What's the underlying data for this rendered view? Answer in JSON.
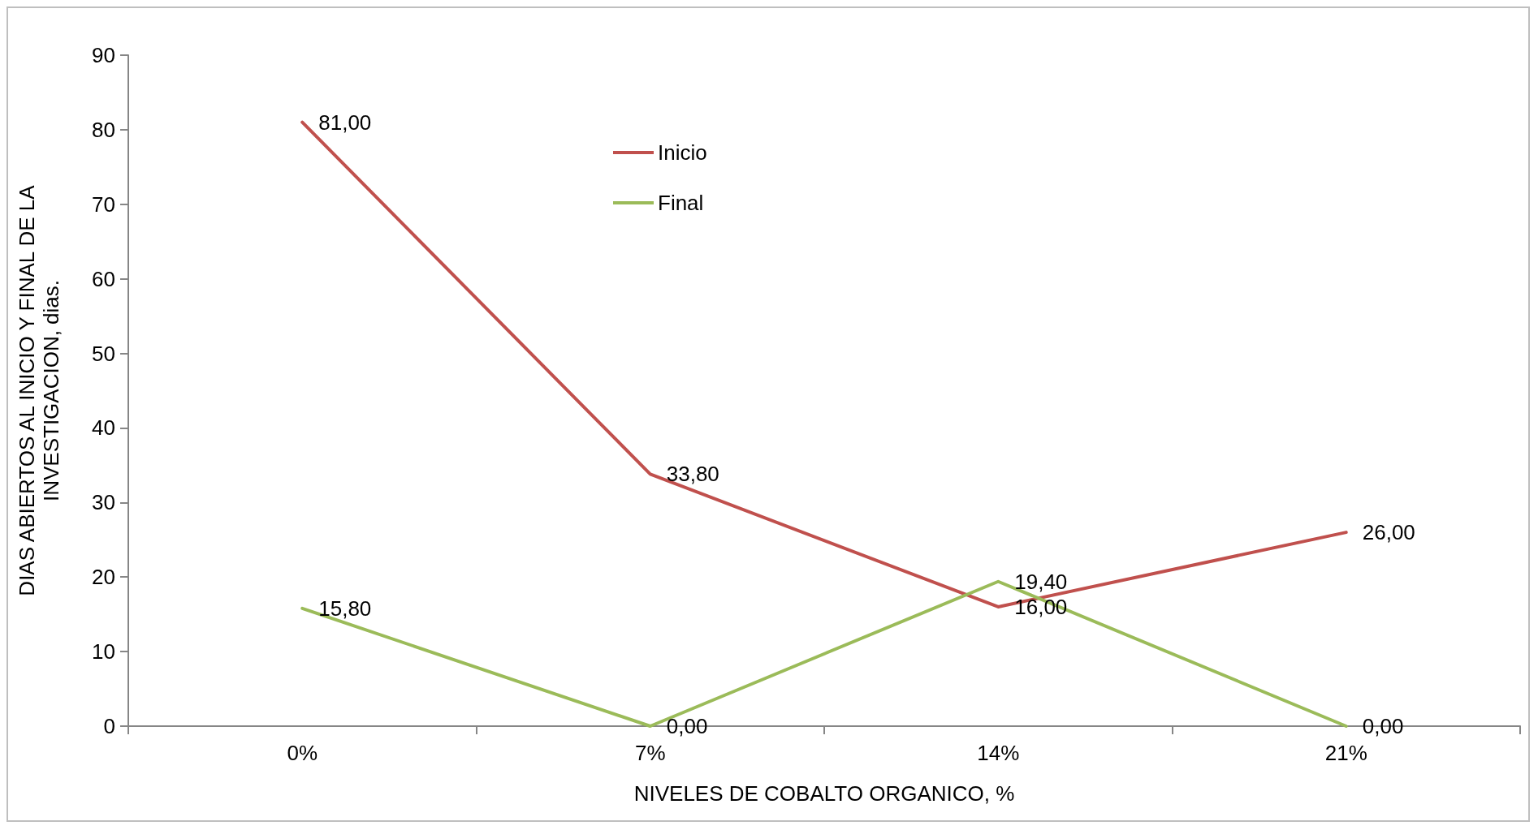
{
  "chart_data": {
    "type": "line",
    "xlabel": "NIVELES DE COBALTO ORGANICO, %",
    "ylabel": "DIAS ABIERTOS AL INICIO Y FINAL DE LA\nINVESTIGACION, dias.",
    "categories": [
      "0%",
      "7%",
      "14%",
      "21%"
    ],
    "series": [
      {
        "name": "Inicio",
        "color": "#c0504d",
        "values": [
          81,
          33.8,
          16,
          26
        ],
        "value_labels": [
          "81,00",
          "33,80",
          "16,00",
          "26,00"
        ]
      },
      {
        "name": "Final",
        "color": "#9bbb59",
        "values": [
          15.8,
          0,
          19.4,
          0
        ],
        "value_labels": [
          "15,80",
          "0,00",
          "19,40",
          "0,00"
        ]
      }
    ],
    "ylim": [
      0,
      90
    ],
    "yticks": [
      0,
      10,
      20,
      30,
      40,
      50,
      60,
      70,
      80,
      90
    ],
    "grid": false,
    "legend": "top center",
    "marker": "none",
    "line_style": "solid"
  }
}
